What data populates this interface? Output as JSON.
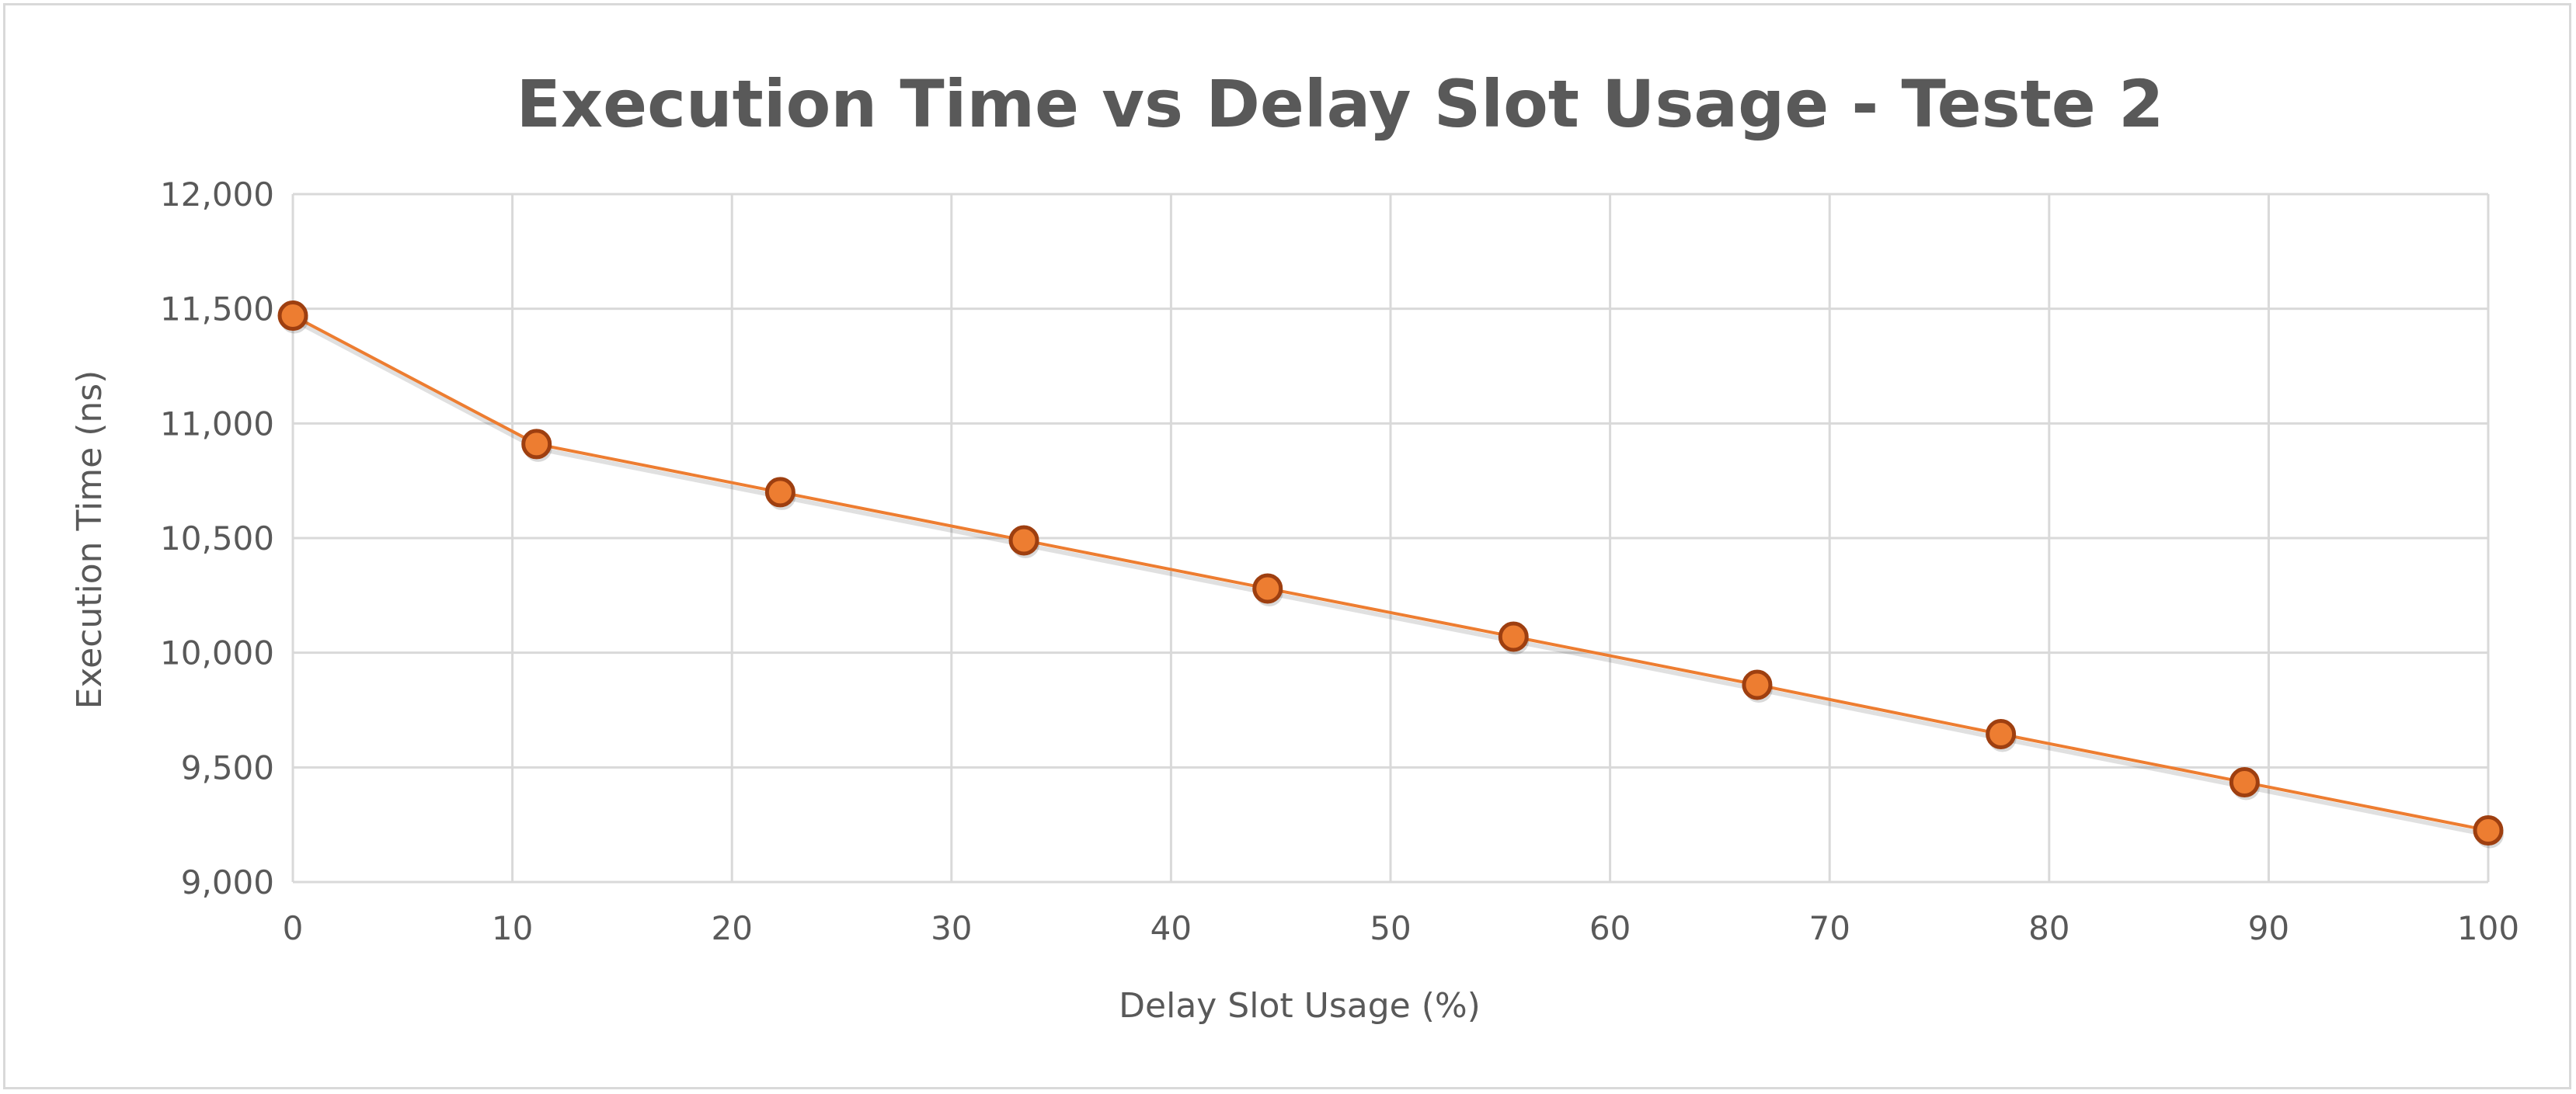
{
  "chart_data": {
    "type": "line",
    "title": "Execution Time vs Delay Slot Usage - Teste 2",
    "xlabel": "Delay Slot Usage (%)",
    "ylabel": "Execution Time (ns)",
    "xlim": [
      0,
      100
    ],
    "ylim": [
      9000,
      12000
    ],
    "xticks": [
      0,
      10,
      20,
      30,
      40,
      50,
      60,
      70,
      80,
      90,
      100
    ],
    "yticks": [
      9000,
      9500,
      10000,
      10500,
      11000,
      11500,
      12000
    ],
    "xtick_labels": [
      "0",
      "10",
      "20",
      "30",
      "40",
      "50",
      "60",
      "70",
      "80",
      "90",
      "100"
    ],
    "ytick_labels": [
      "9,000",
      "9,500",
      "10,000",
      "10,500",
      "11,000",
      "11,500",
      "12,000"
    ],
    "grid": true,
    "legend": "none",
    "colors": {
      "line": "#ed7d31",
      "marker_fill": "#ed7d31",
      "marker_edge": "#9e3f10",
      "grid": "#d9d9d9",
      "text": "#595959"
    },
    "series": [
      {
        "x": [
          0,
          11.1,
          22.2,
          33.3,
          44.4,
          55.6,
          66.7,
          77.8,
          88.9,
          100
        ],
        "y": [
          11470,
          10910,
          10700,
          10490,
          10280,
          10070,
          9860,
          9645,
          9435,
          9225
        ]
      }
    ]
  }
}
